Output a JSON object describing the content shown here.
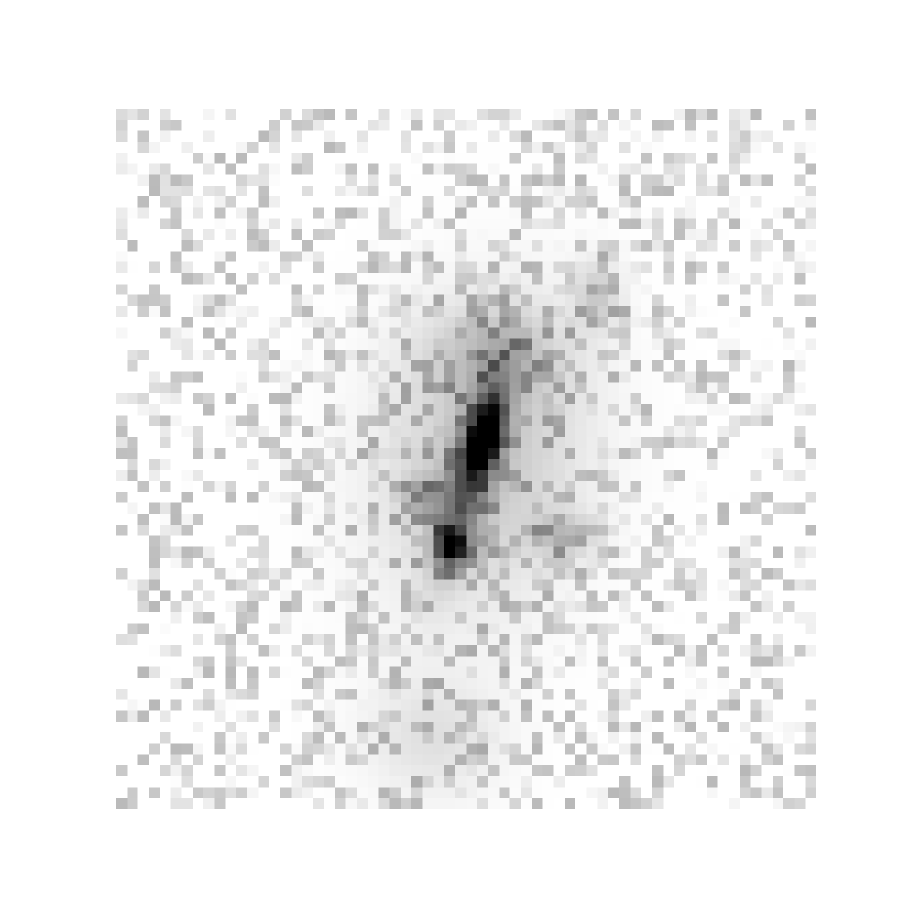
{
  "image": {
    "subject": "grayscale-astronomical-cutout",
    "colormap": "inverted-grayscale",
    "background_color": "#ffffff",
    "ink_color": "#000000",
    "grid_resolution": 64
  }
}
